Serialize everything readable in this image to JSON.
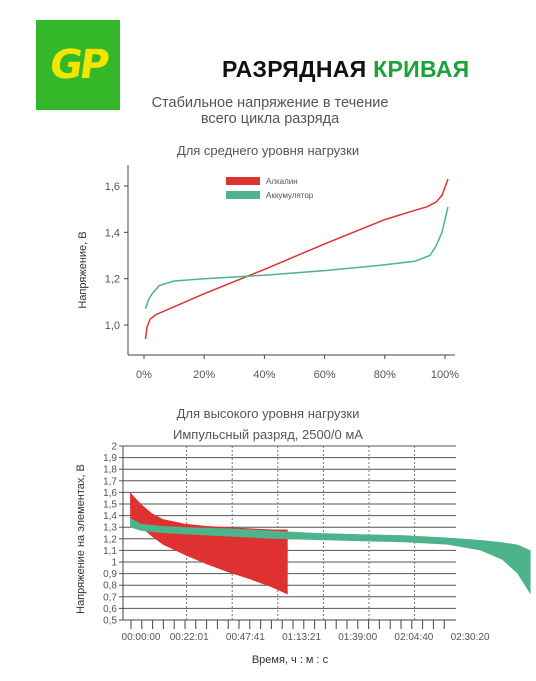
{
  "header": {
    "logo_text": "GP",
    "title_main": "РАЗРЯДНАЯ ",
    "title_accent": "КРИВАЯ",
    "subtitle_line1": "Стабильное напряжение в течение",
    "subtitle_line2": "всего цикла разряда"
  },
  "colors": {
    "alkaline": "#e03131",
    "accumulator": "#4cb38a",
    "brand_green": "#33b82a",
    "logo_yellow": "#f2e600"
  },
  "chart_data": [
    {
      "type": "line",
      "title": "Для среднего уровня нагрузки",
      "ylabel": "Напряжение, В",
      "xlabel": "",
      "x_ticks": [
        "100%",
        "80%",
        "60%",
        "40%",
        "20%",
        "0%"
      ],
      "xlim": [
        100,
        0
      ],
      "y_ticks": [
        "1,6",
        "1,4",
        "1,2",
        "1,0"
      ],
      "y_tick_values": [
        1.6,
        1.4,
        1.2,
        1.0
      ],
      "ylim": [
        0.88,
        1.68
      ],
      "legend_position": "top-center",
      "series": [
        {
          "name": "Алкалин",
          "color": "#e03131",
          "x": [
            101,
            99,
            97,
            94,
            90,
            80,
            60,
            40,
            20,
            4,
            2,
            1,
            0.5
          ],
          "y": [
            1.63,
            1.56,
            1.53,
            1.51,
            1.495,
            1.455,
            1.35,
            1.24,
            1.135,
            1.045,
            1.025,
            0.99,
            0.94
          ]
        },
        {
          "name": "Аккумулятор",
          "color": "#4cb38a",
          "x": [
            101,
            99,
            97,
            95,
            90,
            80,
            60,
            40,
            20,
            10,
            5,
            3,
            1.5,
            0.5
          ],
          "y": [
            1.51,
            1.4,
            1.34,
            1.3,
            1.275,
            1.26,
            1.235,
            1.215,
            1.2,
            1.19,
            1.17,
            1.14,
            1.11,
            1.07
          ]
        }
      ]
    },
    {
      "type": "area",
      "title": "Для высокого уровня нагрузки",
      "subtitle": "Импульсный разряд, 2500/0 мА",
      "ylabel": "Напряжение на элементах, В",
      "xlabel": "Время, ч : м : с",
      "x_ticks": [
        "00:00:00",
        "00:22:01",
        "00:47:41",
        "01:13:21",
        "01:39:00",
        "02:04:40",
        "02:30:20"
      ],
      "x_tick_minutes": [
        0,
        22.02,
        47.68,
        73.35,
        99.0,
        124.67,
        150.33
      ],
      "xlim": [
        -6,
        180
      ],
      "y_ticks": [
        "2",
        "1,9",
        "1,8",
        "1,7",
        "1,6",
        "1,5",
        "1,4",
        "1,3",
        "1,2",
        "1,1",
        "1",
        "0,9",
        "0,8",
        "0,7",
        "0,6",
        "0,5"
      ],
      "y_tick_values": [
        2.0,
        1.9,
        1.8,
        1.7,
        1.6,
        1.5,
        1.4,
        1.3,
        1.2,
        1.1,
        1.0,
        0.9,
        0.8,
        0.7,
        0.6,
        0.5
      ],
      "ylim": [
        0.5,
        2.0
      ],
      "grid": true,
      "series": [
        {
          "name": "",
          "color": "#e03131",
          "x_minutes": [
            -5,
            0,
            5,
            10,
            20,
            30,
            40,
            50,
            60,
            67
          ],
          "upper": [
            1.6,
            1.5,
            1.42,
            1.37,
            1.33,
            1.31,
            1.3,
            1.29,
            1.28,
            1.28
          ],
          "lower": [
            1.37,
            1.3,
            1.22,
            1.15,
            1.06,
            0.98,
            0.91,
            0.85,
            0.78,
            0.72
          ]
        },
        {
          "name": "",
          "color": "#4cb38a",
          "x_minutes": [
            -5,
            0,
            10,
            20,
            40,
            60,
            80,
            100,
            120,
            140,
            155,
            165,
            172,
            178
          ],
          "upper": [
            1.38,
            1.33,
            1.31,
            1.3,
            1.29,
            1.27,
            1.25,
            1.24,
            1.23,
            1.21,
            1.19,
            1.17,
            1.15,
            1.1
          ],
          "lower": [
            1.3,
            1.27,
            1.25,
            1.24,
            1.22,
            1.2,
            1.19,
            1.18,
            1.17,
            1.15,
            1.1,
            1.02,
            0.9,
            0.72
          ]
        }
      ]
    }
  ]
}
